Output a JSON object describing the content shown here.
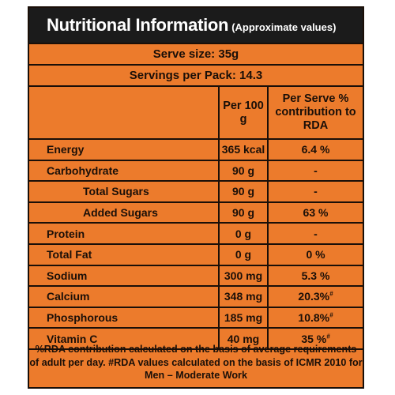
{
  "title": {
    "main": "Nutritional Information",
    "sub": "(Approximate values)"
  },
  "serve_size": "Serve size: 35g",
  "servings_per_pack": "Servings per Pack: 14.3",
  "columns": {
    "per_100g": "Per 100 g",
    "per_serve_rda": "Per Serve % contribution to RDA"
  },
  "rows": [
    {
      "name": "Energy",
      "per_100g": "365 kcal",
      "rda": "6.4 %",
      "mark": ""
    },
    {
      "name": "Carbohydrate",
      "per_100g": "90 g",
      "rda": "-",
      "mark": ""
    },
    {
      "name": "Total Sugars",
      "per_100g": "90 g",
      "rda": "-",
      "mark": ""
    },
    {
      "name": "Added Sugars",
      "per_100g": "90 g",
      "rda": "63 %",
      "mark": ""
    },
    {
      "name": "Protein",
      "per_100g": "0 g",
      "rda": "-",
      "mark": ""
    },
    {
      "name": "Total Fat",
      "per_100g": "0 g",
      "rda": "0 %",
      "mark": ""
    },
    {
      "name": "Sodium",
      "per_100g": "300 mg",
      "rda": "5.3 %",
      "mark": ""
    },
    {
      "name": "Calcium",
      "per_100g": "348 mg",
      "rda": "20.3%",
      "mark": "#"
    },
    {
      "name": "Phosphorous",
      "per_100g": "185 mg",
      "rda": "10.8%",
      "mark": "#"
    },
    {
      "name": "Vitamin C",
      "per_100g": "40 mg",
      "rda": "35 %",
      "mark": "#"
    }
  ],
  "footnote": "%RDA contribution calculated on the basis of average requirements of adult per day. #RDA values calculated on the basis of ICMR 2010 for Men – Moderate Work",
  "colors": {
    "panel": "#ec7b2c",
    "title_bar": "#1b1b1b",
    "text": "#1a0f08"
  }
}
